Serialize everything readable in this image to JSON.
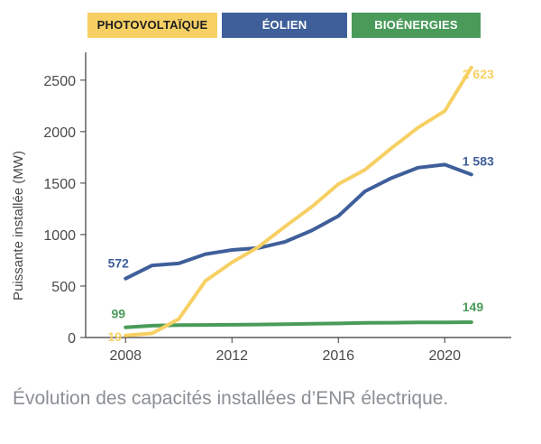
{
  "chart_data": {
    "type": "line",
    "ylabel": "Puissante installée (MW)",
    "xlabel": "",
    "xlim": [
      2006.5,
      2022.5
    ],
    "ylim": [
      0,
      2700
    ],
    "x_ticks": [
      "2008",
      "2012",
      "2016",
      "2020"
    ],
    "y_ticks": [
      "0",
      "500",
      "1000",
      "1500",
      "2000",
      "2500"
    ],
    "grid": false,
    "legend_position": "top",
    "series": [
      {
        "name": "PHOTOVOLTAÏQUE",
        "color": "#f7d064",
        "legend_text_color": "#1e1e1e",
        "x": [
          2008,
          2009,
          2010,
          2011,
          2012,
          2013,
          2014,
          2015,
          2016,
          2017,
          2018,
          2019,
          2020,
          2021
        ],
        "y": [
          19,
          40,
          180,
          550,
          730,
          880,
          1080,
          1270,
          1490,
          1630,
          1840,
          2040,
          2200,
          2623
        ],
        "start_label": "19",
        "end_label": "2 623"
      },
      {
        "name": "ÉOLIEN",
        "color": "#3f5f9a",
        "legend_text_color": "#ffffff",
        "x": [
          2008,
          2009,
          2010,
          2011,
          2012,
          2013,
          2014,
          2015,
          2016,
          2017,
          2018,
          2019,
          2020,
          2021
        ],
        "y": [
          572,
          700,
          720,
          810,
          850,
          870,
          930,
          1040,
          1180,
          1420,
          1550,
          1650,
          1680,
          1583
        ],
        "start_label": "572",
        "end_label": "1 583"
      },
      {
        "name": "BIOÉNERGIES",
        "color": "#4a9b5a",
        "legend_text_color": "#ffffff",
        "x": [
          2008,
          2009,
          2010,
          2011,
          2012,
          2013,
          2014,
          2015,
          2016,
          2017,
          2018,
          2019,
          2020,
          2021
        ],
        "y": [
          99,
          115,
          120,
          122,
          124,
          126,
          130,
          134,
          137,
          142,
          144,
          146,
          147,
          149
        ],
        "start_label": "99",
        "end_label": "149"
      }
    ]
  },
  "caption": "Évolution des capacités installées d’ENR électrique."
}
